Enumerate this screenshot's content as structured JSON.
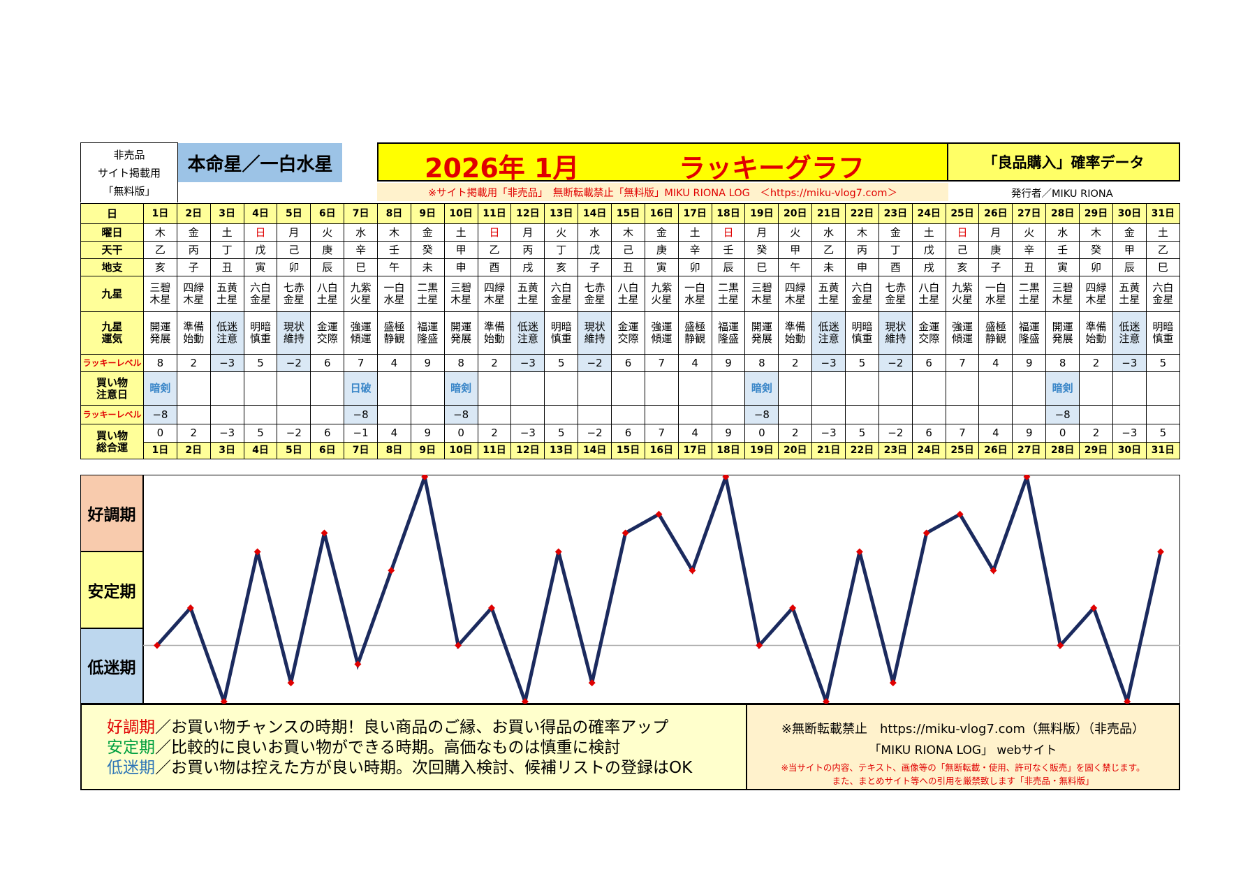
{
  "header": {
    "left_note": [
      "非売品",
      "サイト掲載用",
      "「無料版」"
    ],
    "honmei_label": "本命星／一白水星",
    "year_month": "2026年 1月",
    "lucky_title": "ラッキーグラフ",
    "right_title": "「良品購入」確率データ",
    "notice": "※サイト掲載用「非売品」　無断転載禁止「無料版」MIKU RIONA LOG　＜https://miku-vlog7.com＞",
    "publisher": "発行者／MIKU RIONA"
  },
  "row_labels": {
    "day": "日",
    "weekday": "曜日",
    "tenkan": "天干",
    "chishi": "地支",
    "kyusei": "九星",
    "kyusei_unki_1": "九星",
    "kyusei_unki_2": "運気",
    "lucky_level": "ラッキーレベル",
    "shopping_caution_1": "買い物",
    "shopping_caution_2": "注意日",
    "lucky_level2": "ラッキーレベル",
    "shopping_total_1": "買い物",
    "shopping_total_2": "総合運"
  },
  "days": [
    "1日",
    "2日",
    "3日",
    "4日",
    "5日",
    "6日",
    "7日",
    "8日",
    "9日",
    "10日",
    "11日",
    "12日",
    "13日",
    "14日",
    "15日",
    "16日",
    "17日",
    "18日",
    "19日",
    "20日",
    "21日",
    "22日",
    "23日",
    "24日",
    "25日",
    "26日",
    "27日",
    "28日",
    "29日",
    "30日",
    "31日"
  ],
  "weekdays": [
    "木",
    "金",
    "土",
    "日",
    "月",
    "火",
    "水",
    "木",
    "金",
    "土",
    "日",
    "月",
    "火",
    "水",
    "木",
    "金",
    "土",
    "日",
    "月",
    "火",
    "水",
    "木",
    "金",
    "土",
    "日",
    "月",
    "火",
    "水",
    "木",
    "金",
    "土"
  ],
  "tenkan": [
    "乙",
    "丙",
    "丁",
    "戊",
    "己",
    "庚",
    "辛",
    "壬",
    "癸",
    "甲",
    "乙",
    "丙",
    "丁",
    "戊",
    "己",
    "庚",
    "辛",
    "壬",
    "癸",
    "甲",
    "乙",
    "丙",
    "丁",
    "戊",
    "己",
    "庚",
    "辛",
    "壬",
    "癸",
    "甲",
    "乙"
  ],
  "chishi": [
    "亥",
    "子",
    "丑",
    "寅",
    "卯",
    "辰",
    "巳",
    "午",
    "未",
    "申",
    "酉",
    "戌",
    "亥",
    "子",
    "丑",
    "寅",
    "卯",
    "辰",
    "巳",
    "午",
    "未",
    "申",
    "酉",
    "戌",
    "亥",
    "子",
    "丑",
    "寅",
    "卯",
    "辰",
    "巳"
  ],
  "kyusei": [
    [
      "三碧",
      "木星"
    ],
    [
      "四緑",
      "木星"
    ],
    [
      "五黄",
      "土星"
    ],
    [
      "六白",
      "金星"
    ],
    [
      "七赤",
      "金星"
    ],
    [
      "八白",
      "土星"
    ],
    [
      "九紫",
      "火星"
    ],
    [
      "一白",
      "水星"
    ],
    [
      "二黒",
      "土星"
    ],
    [
      "三碧",
      "木星"
    ],
    [
      "四緑",
      "木星"
    ],
    [
      "五黄",
      "土星"
    ],
    [
      "六白",
      "金星"
    ],
    [
      "七赤",
      "金星"
    ],
    [
      "八白",
      "土星"
    ],
    [
      "九紫",
      "火星"
    ],
    [
      "一白",
      "水星"
    ],
    [
      "二黒",
      "土星"
    ],
    [
      "三碧",
      "木星"
    ],
    [
      "四緑",
      "木星"
    ],
    [
      "五黄",
      "土星"
    ],
    [
      "六白",
      "金星"
    ],
    [
      "七赤",
      "金星"
    ],
    [
      "八白",
      "土星"
    ],
    [
      "九紫",
      "火星"
    ],
    [
      "一白",
      "水星"
    ],
    [
      "二黒",
      "土星"
    ],
    [
      "三碧",
      "木星"
    ],
    [
      "四緑",
      "木星"
    ],
    [
      "五黄",
      "土星"
    ],
    [
      "六白",
      "金星"
    ]
  ],
  "unki": [
    [
      "開運",
      "発展"
    ],
    [
      "準備",
      "始動"
    ],
    [
      "低迷",
      "注意"
    ],
    [
      "明暗",
      "慎重"
    ],
    [
      "現状",
      "維持"
    ],
    [
      "金運",
      "交際"
    ],
    [
      "強運",
      "傾運"
    ],
    [
      "盛極",
      "静観"
    ],
    [
      "福運",
      "隆盛"
    ],
    [
      "開運",
      "発展"
    ],
    [
      "準備",
      "始動"
    ],
    [
      "低迷",
      "注意"
    ],
    [
      "明暗",
      "慎重"
    ],
    [
      "現状",
      "維持"
    ],
    [
      "金運",
      "交際"
    ],
    [
      "強運",
      "傾運"
    ],
    [
      "盛極",
      "静観"
    ],
    [
      "福運",
      "隆盛"
    ],
    [
      "開運",
      "発展"
    ],
    [
      "準備",
      "始動"
    ],
    [
      "低迷",
      "注意"
    ],
    [
      "明暗",
      "慎重"
    ],
    [
      "現状",
      "維持"
    ],
    [
      "金運",
      "交際"
    ],
    [
      "強運",
      "傾運"
    ],
    [
      "盛極",
      "静観"
    ],
    [
      "福運",
      "隆盛"
    ],
    [
      "開運",
      "発展"
    ],
    [
      "準備",
      "始動"
    ],
    [
      "低迷",
      "注意"
    ],
    [
      "明暗",
      "慎重"
    ]
  ],
  "lucky_level": [
    "8",
    "2",
    "−3",
    "5",
    "−2",
    "6",
    "7",
    "4",
    "9",
    "8",
    "2",
    "−3",
    "5",
    "−2",
    "6",
    "7",
    "4",
    "9",
    "8",
    "2",
    "−3",
    "5",
    "−2",
    "6",
    "7",
    "4",
    "9",
    "8",
    "2",
    "−3",
    "5"
  ],
  "caution": [
    "暗剣",
    "",
    "",
    "",
    "",
    "",
    "日破",
    "",
    "",
    "暗剣",
    "",
    "",
    "",
    "",
    "",
    "",
    "",
    "",
    "暗剣",
    "",
    "",
    "",
    "",
    "",
    "",
    "",
    "",
    "暗剣",
    "",
    "",
    ""
  ],
  "caution_level": [
    "−8",
    "",
    "",
    "",
    "",
    "",
    "−8",
    "",
    "",
    "−8",
    "",
    "",
    "",
    "",
    "",
    "",
    "",
    "",
    "−8",
    "",
    "",
    "",
    "",
    "",
    "",
    "",
    "",
    "−8",
    "",
    "",
    ""
  ],
  "total": [
    "0",
    "2",
    "−3",
    "5",
    "−2",
    "6",
    "−1",
    "4",
    "9",
    "0",
    "2",
    "−3",
    "5",
    "−2",
    "6",
    "7",
    "4",
    "9",
    "0",
    "2",
    "−3",
    "5",
    "−2",
    "6",
    "7",
    "4",
    "9",
    "0",
    "2",
    "−3",
    "5"
  ],
  "phases": {
    "good": "好調期",
    "stable": "安定期",
    "low": "低迷期"
  },
  "legend": {
    "good_head": "好調期",
    "good_text": "／お買い物チャンスの時期！良い商品のご縁、お買い得品の確率アップ",
    "stable_head": "安定期",
    "stable_text": "／比較的に良いお買い物ができる時期。高価なものは慎重に検討",
    "low_head": "低迷期",
    "low_text": "／お買い物は控えた方が良い時期。次回購入検討、候補リストの登録はOK"
  },
  "footer_right": {
    "line1": "※無断転載禁止　https://miku-vlog7.com（無料版）（非売品）",
    "line2": "「MIKU RIONA LOG」 webサイト",
    "line3": "※当サイトの内容、テキスト、画像等の「無断転載・使用、許可なく販売」を固く禁じます。",
    "line4": "また、まとめサイト等への引用を厳禁致します「非売品・無料版」"
  },
  "colors": {
    "line": "#1b2a5e",
    "point": "#e00000",
    "good_bg": "#f8cbad",
    "stable_bg": "#ffff99",
    "low_bg": "#bdd7ee",
    "good_text": "#e00000",
    "stable_text": "#00a040",
    "low_text": "#2e75b6"
  },
  "chart_data": {
    "type": "line",
    "x": [
      "1日",
      "2日",
      "3日",
      "4日",
      "5日",
      "6日",
      "7日",
      "8日",
      "9日",
      "10日",
      "11日",
      "12日",
      "13日",
      "14日",
      "15日",
      "16日",
      "17日",
      "18日",
      "19日",
      "20日",
      "21日",
      "22日",
      "23日",
      "24日",
      "25日",
      "26日",
      "27日",
      "28日",
      "29日",
      "30日",
      "31日"
    ],
    "series": [
      {
        "values": [
          0,
          2,
          -3,
          5,
          -2,
          6,
          -1,
          4,
          9,
          0,
          2,
          -3,
          5,
          -2,
          6,
          7,
          4,
          9,
          0,
          2,
          -3,
          5,
          -2,
          6,
          7,
          4,
          9,
          0,
          2,
          -3,
          5
        ]
      }
    ],
    "ylim": [
      -3,
      9
    ],
    "baseline": 0,
    "grid": false
  }
}
